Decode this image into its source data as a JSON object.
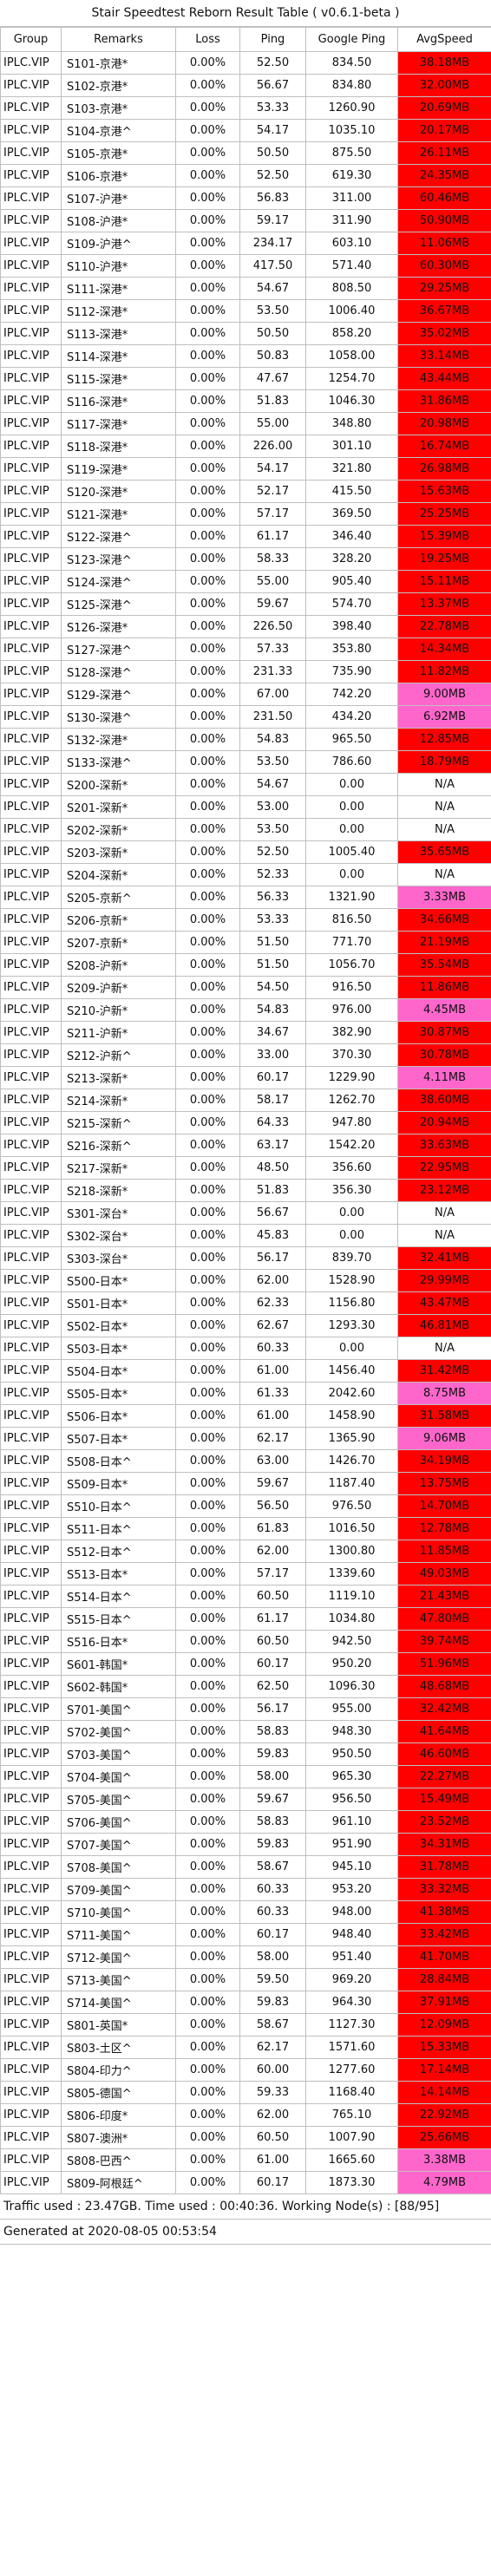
{
  "title": "Stair Speedtest Reborn Result Table ( v0.6.1-beta )",
  "columns": [
    "Group",
    "Remarks",
    "Loss",
    "Ping",
    "Google Ping",
    "AvgSpeed"
  ],
  "speed_colors": {
    "red": "#ff0000",
    "pink": "#ff66cc",
    "none": "#ffffff"
  },
  "rows": [
    [
      "IPLC.VIP",
      "S101-京港*",
      "0.00%",
      "52.50",
      "834.50",
      "38.18MB",
      "red"
    ],
    [
      "IPLC.VIP",
      "S102-京港*",
      "0.00%",
      "56.67",
      "834.80",
      "32.00MB",
      "red"
    ],
    [
      "IPLC.VIP",
      "S103-京港*",
      "0.00%",
      "53.33",
      "1260.90",
      "20.69MB",
      "red"
    ],
    [
      "IPLC.VIP",
      "S104-京港^",
      "0.00%",
      "54.17",
      "1035.10",
      "20.17MB",
      "red"
    ],
    [
      "IPLC.VIP",
      "S105-京港*",
      "0.00%",
      "50.50",
      "875.50",
      "26.11MB",
      "red"
    ],
    [
      "IPLC.VIP",
      "S106-京港*",
      "0.00%",
      "52.50",
      "619.30",
      "24.35MB",
      "red"
    ],
    [
      "IPLC.VIP",
      "S107-沪港*",
      "0.00%",
      "56.83",
      "311.00",
      "60.46MB",
      "red"
    ],
    [
      "IPLC.VIP",
      "S108-沪港*",
      "0.00%",
      "59.17",
      "311.90",
      "50.90MB",
      "red"
    ],
    [
      "IPLC.VIP",
      "S109-沪港^",
      "0.00%",
      "234.17",
      "603.10",
      "11.06MB",
      "red"
    ],
    [
      "IPLC.VIP",
      "S110-沪港*",
      "0.00%",
      "417.50",
      "571.40",
      "60.30MB",
      "red"
    ],
    [
      "IPLC.VIP",
      "S111-深港*",
      "0.00%",
      "54.67",
      "808.50",
      "29.25MB",
      "red"
    ],
    [
      "IPLC.VIP",
      "S112-深港*",
      "0.00%",
      "53.50",
      "1006.40",
      "36.67MB",
      "red"
    ],
    [
      "IPLC.VIP",
      "S113-深港*",
      "0.00%",
      "50.50",
      "858.20",
      "35.02MB",
      "red"
    ],
    [
      "IPLC.VIP",
      "S114-深港*",
      "0.00%",
      "50.83",
      "1058.00",
      "33.14MB",
      "red"
    ],
    [
      "IPLC.VIP",
      "S115-深港*",
      "0.00%",
      "47.67",
      "1254.70",
      "43.44MB",
      "red"
    ],
    [
      "IPLC.VIP",
      "S116-深港*",
      "0.00%",
      "51.83",
      "1046.30",
      "31.86MB",
      "red"
    ],
    [
      "IPLC.VIP",
      "S117-深港*",
      "0.00%",
      "55.00",
      "348.80",
      "20.98MB",
      "red"
    ],
    [
      "IPLC.VIP",
      "S118-深港*",
      "0.00%",
      "226.00",
      "301.10",
      "16.74MB",
      "red"
    ],
    [
      "IPLC.VIP",
      "S119-深港*",
      "0.00%",
      "54.17",
      "321.80",
      "26.98MB",
      "red"
    ],
    [
      "IPLC.VIP",
      "S120-深港*",
      "0.00%",
      "52.17",
      "415.50",
      "15.63MB",
      "red"
    ],
    [
      "IPLC.VIP",
      "S121-深港*",
      "0.00%",
      "57.17",
      "369.50",
      "25.25MB",
      "red"
    ],
    [
      "IPLC.VIP",
      "S122-深港^",
      "0.00%",
      "61.17",
      "346.40",
      "15.39MB",
      "red"
    ],
    [
      "IPLC.VIP",
      "S123-深港^",
      "0.00%",
      "58.33",
      "328.20",
      "19.25MB",
      "red"
    ],
    [
      "IPLC.VIP",
      "S124-深港^",
      "0.00%",
      "55.00",
      "905.40",
      "15.11MB",
      "red"
    ],
    [
      "IPLC.VIP",
      "S125-深港^",
      "0.00%",
      "59.67",
      "574.70",
      "13.37MB",
      "red"
    ],
    [
      "IPLC.VIP",
      "S126-深港*",
      "0.00%",
      "226.50",
      "398.40",
      "22.78MB",
      "red"
    ],
    [
      "IPLC.VIP",
      "S127-深港^",
      "0.00%",
      "57.33",
      "353.80",
      "14.34MB",
      "red"
    ],
    [
      "IPLC.VIP",
      "S128-深港^",
      "0.00%",
      "231.33",
      "735.90",
      "11.82MB",
      "red"
    ],
    [
      "IPLC.VIP",
      "S129-深港^",
      "0.00%",
      "67.00",
      "742.20",
      "9.00MB",
      "pink"
    ],
    [
      "IPLC.VIP",
      "S130-深港^",
      "0.00%",
      "231.50",
      "434.20",
      "6.92MB",
      "pink"
    ],
    [
      "IPLC.VIP",
      "S132-深港*",
      "0.00%",
      "54.83",
      "965.50",
      "12.85MB",
      "red"
    ],
    [
      "IPLC.VIP",
      "S133-深港^",
      "0.00%",
      "53.50",
      "786.60",
      "18.79MB",
      "red"
    ],
    [
      "IPLC.VIP",
      "S200-深新*",
      "0.00%",
      "54.67",
      "0.00",
      "N/A",
      "none"
    ],
    [
      "IPLC.VIP",
      "S201-深新*",
      "0.00%",
      "53.00",
      "0.00",
      "N/A",
      "none"
    ],
    [
      "IPLC.VIP",
      "S202-深新*",
      "0.00%",
      "53.50",
      "0.00",
      "N/A",
      "none"
    ],
    [
      "IPLC.VIP",
      "S203-深新*",
      "0.00%",
      "52.50",
      "1005.40",
      "35.65MB",
      "red"
    ],
    [
      "IPLC.VIP",
      "S204-深新*",
      "0.00%",
      "52.33",
      "0.00",
      "N/A",
      "none"
    ],
    [
      "IPLC.VIP",
      "S205-京新^",
      "0.00%",
      "56.33",
      "1321.90",
      "3.33MB",
      "pink"
    ],
    [
      "IPLC.VIP",
      "S206-京新*",
      "0.00%",
      "53.33",
      "816.50",
      "34.66MB",
      "red"
    ],
    [
      "IPLC.VIP",
      "S207-京新*",
      "0.00%",
      "51.50",
      "771.70",
      "21.19MB",
      "red"
    ],
    [
      "IPLC.VIP",
      "S208-沪新*",
      "0.00%",
      "51.50",
      "1056.70",
      "35.54MB",
      "red"
    ],
    [
      "IPLC.VIP",
      "S209-沪新*",
      "0.00%",
      "54.50",
      "916.50",
      "11.86MB",
      "red"
    ],
    [
      "IPLC.VIP",
      "S210-沪新*",
      "0.00%",
      "54.83",
      "976.00",
      "4.45MB",
      "pink"
    ],
    [
      "IPLC.VIP",
      "S211-沪新*",
      "0.00%",
      "34.67",
      "382.90",
      "30.87MB",
      "red"
    ],
    [
      "IPLC.VIP",
      "S212-沪新^",
      "0.00%",
      "33.00",
      "370.30",
      "30.78MB",
      "red"
    ],
    [
      "IPLC.VIP",
      "S213-深新*",
      "0.00%",
      "60.17",
      "1229.90",
      "4.11MB",
      "pink"
    ],
    [
      "IPLC.VIP",
      "S214-深新*",
      "0.00%",
      "58.17",
      "1262.70",
      "38.60MB",
      "red"
    ],
    [
      "IPLC.VIP",
      "S215-深新^",
      "0.00%",
      "64.33",
      "947.80",
      "20.94MB",
      "red"
    ],
    [
      "IPLC.VIP",
      "S216-深新^",
      "0.00%",
      "63.17",
      "1542.20",
      "33.63MB",
      "red"
    ],
    [
      "IPLC.VIP",
      "S217-深新*",
      "0.00%",
      "48.50",
      "356.60",
      "22.95MB",
      "red"
    ],
    [
      "IPLC.VIP",
      "S218-深新*",
      "0.00%",
      "51.83",
      "356.30",
      "23.12MB",
      "red"
    ],
    [
      "IPLC.VIP",
      "S301-深台*",
      "0.00%",
      "56.67",
      "0.00",
      "N/A",
      "none"
    ],
    [
      "IPLC.VIP",
      "S302-深台*",
      "0.00%",
      "45.83",
      "0.00",
      "N/A",
      "none"
    ],
    [
      "IPLC.VIP",
      "S303-深台*",
      "0.00%",
      "56.17",
      "839.70",
      "32.41MB",
      "red"
    ],
    [
      "IPLC.VIP",
      "S500-日本*",
      "0.00%",
      "62.00",
      "1528.90",
      "29.99MB",
      "red"
    ],
    [
      "IPLC.VIP",
      "S501-日本*",
      "0.00%",
      "62.33",
      "1156.80",
      "43.47MB",
      "red"
    ],
    [
      "IPLC.VIP",
      "S502-日本*",
      "0.00%",
      "62.67",
      "1293.30",
      "46.81MB",
      "red"
    ],
    [
      "IPLC.VIP",
      "S503-日本*",
      "0.00%",
      "60.33",
      "0.00",
      "N/A",
      "none"
    ],
    [
      "IPLC.VIP",
      "S504-日本*",
      "0.00%",
      "61.00",
      "1456.40",
      "31.42MB",
      "red"
    ],
    [
      "IPLC.VIP",
      "S505-日本*",
      "0.00%",
      "61.33",
      "2042.60",
      "8.75MB",
      "pink"
    ],
    [
      "IPLC.VIP",
      "S506-日本*",
      "0.00%",
      "61.00",
      "1458.90",
      "31.58MB",
      "red"
    ],
    [
      "IPLC.VIP",
      "S507-日本*",
      "0.00%",
      "62.17",
      "1365.90",
      "9.06MB",
      "pink"
    ],
    [
      "IPLC.VIP",
      "S508-日本^",
      "0.00%",
      "63.00",
      "1426.70",
      "34.19MB",
      "red"
    ],
    [
      "IPLC.VIP",
      "S509-日本*",
      "0.00%",
      "59.67",
      "1187.40",
      "13.75MB",
      "red"
    ],
    [
      "IPLC.VIP",
      "S510-日本^",
      "0.00%",
      "56.50",
      "976.50",
      "14.70MB",
      "red"
    ],
    [
      "IPLC.VIP",
      "S511-日本^",
      "0.00%",
      "61.83",
      "1016.50",
      "12.78MB",
      "red"
    ],
    [
      "IPLC.VIP",
      "S512-日本^",
      "0.00%",
      "62.00",
      "1300.80",
      "11.85MB",
      "red"
    ],
    [
      "IPLC.VIP",
      "S513-日本*",
      "0.00%",
      "57.17",
      "1339.60",
      "49.03MB",
      "red"
    ],
    [
      "IPLC.VIP",
      "S514-日本^",
      "0.00%",
      "60.50",
      "1119.10",
      "21.43MB",
      "red"
    ],
    [
      "IPLC.VIP",
      "S515-日本^",
      "0.00%",
      "61.17",
      "1034.80",
      "47.80MB",
      "red"
    ],
    [
      "IPLC.VIP",
      "S516-日本*",
      "0.00%",
      "60.50",
      "942.50",
      "39.74MB",
      "red"
    ],
    [
      "IPLC.VIP",
      "S601-韩国*",
      "0.00%",
      "60.17",
      "950.20",
      "51.96MB",
      "red"
    ],
    [
      "IPLC.VIP",
      "S602-韩国*",
      "0.00%",
      "62.50",
      "1096.30",
      "48.68MB",
      "red"
    ],
    [
      "IPLC.VIP",
      "S701-美国^",
      "0.00%",
      "56.17",
      "955.00",
      "32.42MB",
      "red"
    ],
    [
      "IPLC.VIP",
      "S702-美国^",
      "0.00%",
      "58.83",
      "948.30",
      "41.64MB",
      "red"
    ],
    [
      "IPLC.VIP",
      "S703-美国^",
      "0.00%",
      "59.83",
      "950.50",
      "46.60MB",
      "red"
    ],
    [
      "IPLC.VIP",
      "S704-美国^",
      "0.00%",
      "58.00",
      "965.30",
      "22.27MB",
      "red"
    ],
    [
      "IPLC.VIP",
      "S705-美国^",
      "0.00%",
      "59.67",
      "956.50",
      "15.49MB",
      "red"
    ],
    [
      "IPLC.VIP",
      "S706-美国^",
      "0.00%",
      "58.83",
      "961.10",
      "23.52MB",
      "red"
    ],
    [
      "IPLC.VIP",
      "S707-美国^",
      "0.00%",
      "59.83",
      "951.90",
      "34.31MB",
      "red"
    ],
    [
      "IPLC.VIP",
      "S708-美国^",
      "0.00%",
      "58.67",
      "945.10",
      "31.78MB",
      "red"
    ],
    [
      "IPLC.VIP",
      "S709-美国^",
      "0.00%",
      "60.33",
      "953.20",
      "33.32MB",
      "red"
    ],
    [
      "IPLC.VIP",
      "S710-美国^",
      "0.00%",
      "60.33",
      "948.00",
      "41.38MB",
      "red"
    ],
    [
      "IPLC.VIP",
      "S711-美国^",
      "0.00%",
      "60.17",
      "948.40",
      "33.42MB",
      "red"
    ],
    [
      "IPLC.VIP",
      "S712-美国^",
      "0.00%",
      "58.00",
      "951.40",
      "41.70MB",
      "red"
    ],
    [
      "IPLC.VIP",
      "S713-美国^",
      "0.00%",
      "59.50",
      "969.20",
      "28.84MB",
      "red"
    ],
    [
      "IPLC.VIP",
      "S714-美国^",
      "0.00%",
      "59.83",
      "964.30",
      "37.91MB",
      "red"
    ],
    [
      "IPLC.VIP",
      "S801-英国*",
      "0.00%",
      "58.67",
      "1127.30",
      "12.09MB",
      "red"
    ],
    [
      "IPLC.VIP",
      "S803-土区^",
      "0.00%",
      "62.17",
      "1571.60",
      "15.33MB",
      "red"
    ],
    [
      "IPLC.VIP",
      "S804-印力^",
      "0.00%",
      "60.00",
      "1277.60",
      "17.14MB",
      "red"
    ],
    [
      "IPLC.VIP",
      "S805-德国^",
      "0.00%",
      "59.33",
      "1168.40",
      "14.14MB",
      "red"
    ],
    [
      "IPLC.VIP",
      "S806-印度*",
      "0.00%",
      "62.00",
      "765.10",
      "22.92MB",
      "red"
    ],
    [
      "IPLC.VIP",
      "S807-澳洲*",
      "0.00%",
      "60.50",
      "1007.90",
      "25.66MB",
      "red"
    ],
    [
      "IPLC.VIP",
      "S808-巴西^",
      "0.00%",
      "61.00",
      "1665.60",
      "3.38MB",
      "pink"
    ],
    [
      "IPLC.VIP",
      "S809-阿根廷^",
      "0.00%",
      "60.17",
      "1873.30",
      "4.79MB",
      "pink"
    ]
  ],
  "footer": {
    "traffic": "Traffic used : 23.47GB. Time used : 00:40:36. Working Node(s) : [88/95]",
    "generated": "Generated at 2020-08-05 00:53:54"
  }
}
